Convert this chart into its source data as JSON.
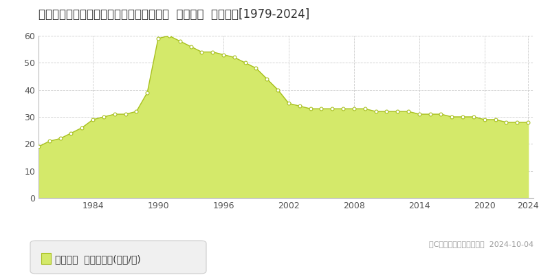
{
  "title": "兵庫県高砂市米田町米田字大橋３０７番３  基準地価  地価推移[1979-2024]",
  "years": [
    1979,
    1980,
    1981,
    1982,
    1983,
    1984,
    1985,
    1986,
    1987,
    1988,
    1989,
    1990,
    1991,
    1992,
    1993,
    1994,
    1995,
    1996,
    1997,
    1998,
    1999,
    2000,
    2001,
    2002,
    2003,
    2004,
    2005,
    2006,
    2007,
    2008,
    2009,
    2010,
    2011,
    2012,
    2013,
    2014,
    2015,
    2016,
    2017,
    2018,
    2019,
    2020,
    2021,
    2022,
    2023,
    2024
  ],
  "values": [
    19,
    21,
    22,
    24,
    26,
    29,
    30,
    31,
    31,
    32,
    39,
    59,
    60,
    58,
    56,
    54,
    54,
    53,
    52,
    50,
    48,
    44,
    40,
    35,
    34,
    33,
    33,
    33,
    33,
    33,
    33,
    32,
    32,
    32,
    32,
    31,
    31,
    31,
    30,
    30,
    30,
    29,
    29,
    28,
    28,
    28
  ],
  "fill_color": "#d4e96a",
  "line_color": "#a8c020",
  "marker_color": "#ffffff",
  "marker_edge_color": "#a8c020",
  "grid_color": "#cccccc",
  "bg_color": "#ffffff",
  "plot_bg_color": "#ffffff",
  "ylim": [
    0,
    60
  ],
  "yticks": [
    0,
    10,
    20,
    30,
    40,
    50,
    60
  ],
  "xtick_years": [
    1984,
    1990,
    1996,
    2002,
    2008,
    2014,
    2020,
    2024
  ],
  "legend_label": "基準地価  平均坪単価(万円/坪)",
  "copyright_text": "（C）土地価格ドットコム  2024-10-04",
  "title_fontsize": 12,
  "tick_fontsize": 9,
  "legend_fontsize": 10,
  "copyright_fontsize": 8
}
